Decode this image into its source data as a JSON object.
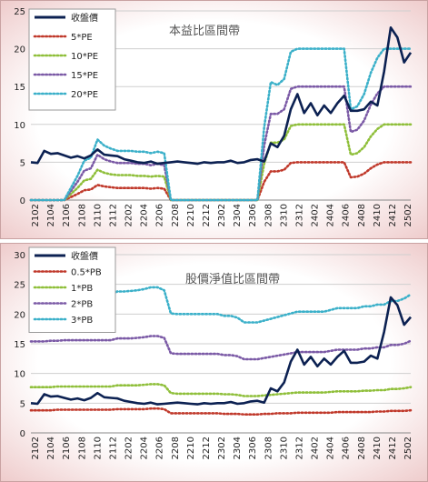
{
  "chart_data": [
    {
      "type": "line",
      "title": "本益比區間帶",
      "ylim": [
        0,
        25
      ],
      "yticks": [
        0,
        5,
        10,
        15,
        20,
        25
      ],
      "x_labels": [
        "2102",
        "2104",
        "2106",
        "2108",
        "2110",
        "2112",
        "2202",
        "2204",
        "2206",
        "2208",
        "2210",
        "2212",
        "2302",
        "2304",
        "2306",
        "2308",
        "2310",
        "2312",
        "2402",
        "2404",
        "2406",
        "2408",
        "2410",
        "2412",
        "2502"
      ],
      "series": [
        {
          "name": "收盤價",
          "color": "#0c2152",
          "style": "solid",
          "values": [
            5.0,
            4.9,
            6.5,
            6.1,
            6.2,
            5.9,
            5.6,
            5.8,
            5.5,
            5.9,
            6.7,
            6.0,
            5.9,
            5.8,
            5.4,
            5.2,
            5.0,
            4.9,
            5.1,
            4.8,
            4.9,
            5.0,
            5.1,
            5.0,
            4.9,
            4.8,
            5.0,
            4.9,
            5.0,
            5.0,
            5.2,
            4.9,
            5.0,
            5.3,
            5.4,
            5.1,
            7.5,
            7.0,
            8.5,
            12.0,
            14.0,
            11.5,
            12.8,
            11.2,
            12.5,
            11.5,
            12.8,
            13.8,
            11.8,
            11.8,
            12.0,
            13.0,
            12.5,
            17.0,
            22.8,
            21.5,
            18.2,
            19.5
          ]
        },
        {
          "name": "5*PE",
          "color": "#c0392b",
          "style": "dotted",
          "values": [
            0,
            0,
            0,
            0,
            0,
            0,
            0.4,
            0.8,
            1.3,
            1.4,
            2.0,
            1.8,
            1.7,
            1.6,
            1.6,
            1.6,
            1.6,
            1.6,
            1.5,
            1.6,
            1.5,
            0,
            0,
            0,
            0,
            0,
            0,
            0,
            0,
            0,
            0,
            0,
            0,
            0,
            0,
            2.4,
            3.8,
            3.8,
            4.0,
            4.9,
            5.0,
            5.0,
            5.0,
            5.0,
            5.0,
            5.0,
            5.0,
            5.0,
            3.0,
            3.1,
            3.5,
            4.2,
            4.7,
            5.0,
            5.0,
            5.0,
            5.0,
            5.0
          ]
        },
        {
          "name": "10*PE",
          "color": "#8fbf3a",
          "style": "dotted",
          "values": [
            0,
            0,
            0,
            0,
            0,
            0,
            0.8,
            1.6,
            2.6,
            2.8,
            4.0,
            3.6,
            3.4,
            3.3,
            3.3,
            3.3,
            3.2,
            3.2,
            3.1,
            3.2,
            3.1,
            0,
            0,
            0,
            0,
            0,
            0,
            0,
            0,
            0,
            0,
            0,
            0,
            0,
            0,
            4.8,
            7.6,
            7.6,
            8.0,
            9.8,
            10.0,
            10.0,
            10.0,
            10.0,
            10.0,
            10.0,
            10.0,
            10.0,
            6.0,
            6.2,
            7.0,
            8.4,
            9.4,
            10.0,
            10.0,
            10.0,
            10.0,
            10.0
          ]
        },
        {
          "name": "15*PE",
          "color": "#7b5aa6",
          "style": "dotted",
          "values": [
            0,
            0,
            0,
            0,
            0,
            0,
            1.2,
            2.4,
            3.9,
            4.2,
            6.0,
            5.4,
            5.1,
            4.9,
            4.9,
            4.9,
            4.8,
            4.8,
            4.6,
            4.8,
            4.6,
            0,
            0,
            0,
            0,
            0,
            0,
            0,
            0,
            0,
            0,
            0,
            0,
            0,
            0,
            7.2,
            11.4,
            11.4,
            12.0,
            14.7,
            15.0,
            15.0,
            15.0,
            15.0,
            15.0,
            15.0,
            15.0,
            15.0,
            9.0,
            9.3,
            10.5,
            12.6,
            14.1,
            15.0,
            15.0,
            15.0,
            15.0,
            15.0
          ]
        },
        {
          "name": "20*PE",
          "color": "#3bb0c9",
          "style": "dotted",
          "values": [
            0,
            0,
            0,
            0,
            0,
            0,
            1.6,
            3.2,
            5.2,
            5.6,
            8.0,
            7.2,
            6.8,
            6.5,
            6.5,
            6.5,
            6.4,
            6.4,
            6.2,
            6.4,
            6.2,
            0,
            0,
            0,
            0,
            0,
            0,
            0,
            0,
            0,
            0,
            0,
            0,
            0,
            0,
            9.6,
            15.6,
            15.2,
            16.0,
            19.6,
            20.0,
            20.0,
            20.0,
            20.0,
            20.0,
            20.0,
            20.0,
            20.0,
            12.0,
            12.4,
            14.0,
            16.8,
            18.8,
            20.0,
            20.0,
            20.0,
            20.0,
            20.0
          ]
        }
      ]
    },
    {
      "type": "line",
      "title": "股價淨值比區間帶",
      "ylim": [
        0,
        30
      ],
      "yticks": [
        0,
        5,
        10,
        15,
        20,
        25,
        30
      ],
      "x_labels": [
        "2102",
        "2104",
        "2106",
        "2108",
        "2110",
        "2112",
        "2202",
        "2204",
        "2206",
        "2208",
        "2210",
        "2212",
        "2302",
        "2304",
        "2306",
        "2308",
        "2310",
        "2312",
        "2402",
        "2404",
        "2406",
        "2408",
        "2410",
        "2412",
        "2502"
      ],
      "series": [
        {
          "name": "收盤價",
          "color": "#0c2152",
          "style": "solid",
          "values": [
            5.0,
            4.9,
            6.5,
            6.1,
            6.2,
            5.9,
            5.6,
            5.8,
            5.5,
            5.9,
            6.7,
            6.0,
            5.9,
            5.8,
            5.4,
            5.2,
            5.0,
            4.9,
            5.1,
            4.8,
            4.9,
            5.0,
            5.1,
            5.0,
            4.9,
            4.8,
            5.0,
            4.9,
            5.0,
            5.0,
            5.2,
            4.9,
            5.0,
            5.3,
            5.4,
            5.1,
            7.5,
            7.0,
            8.5,
            12.0,
            14.0,
            11.5,
            12.8,
            11.2,
            12.5,
            11.5,
            12.8,
            13.8,
            11.8,
            11.8,
            12.0,
            13.0,
            12.5,
            17.0,
            22.8,
            21.5,
            18.2,
            19.5
          ]
        },
        {
          "name": "0.5*PB",
          "color": "#c0392b",
          "style": "dotted",
          "values": [
            3.8,
            3.8,
            3.8,
            3.8,
            3.9,
            3.9,
            3.9,
            3.9,
            3.9,
            3.9,
            3.9,
            3.9,
            3.9,
            4.0,
            4.0,
            4.0,
            4.0,
            4.0,
            4.1,
            4.1,
            4.0,
            3.3,
            3.3,
            3.3,
            3.3,
            3.3,
            3.3,
            3.3,
            3.3,
            3.2,
            3.2,
            3.2,
            3.1,
            3.1,
            3.1,
            3.2,
            3.2,
            3.3,
            3.3,
            3.3,
            3.4,
            3.4,
            3.4,
            3.4,
            3.4,
            3.4,
            3.5,
            3.5,
            3.5,
            3.5,
            3.5,
            3.5,
            3.6,
            3.6,
            3.7,
            3.7,
            3.7,
            3.8
          ]
        },
        {
          "name": "1*PB",
          "color": "#8fbf3a",
          "style": "dotted",
          "values": [
            7.7,
            7.7,
            7.7,
            7.7,
            7.8,
            7.8,
            7.8,
            7.8,
            7.8,
            7.8,
            7.8,
            7.8,
            7.8,
            8.0,
            8.0,
            8.0,
            8.0,
            8.1,
            8.2,
            8.2,
            8.0,
            6.7,
            6.6,
            6.6,
            6.6,
            6.6,
            6.6,
            6.6,
            6.6,
            6.5,
            6.5,
            6.4,
            6.2,
            6.2,
            6.2,
            6.3,
            6.4,
            6.5,
            6.6,
            6.7,
            6.8,
            6.8,
            6.8,
            6.8,
            6.8,
            6.9,
            7.0,
            7.0,
            7.0,
            7.0,
            7.1,
            7.1,
            7.2,
            7.2,
            7.4,
            7.4,
            7.5,
            7.7
          ]
        },
        {
          "name": "2*PB",
          "color": "#7b5aa6",
          "style": "dotted",
          "values": [
            15.4,
            15.4,
            15.4,
            15.5,
            15.5,
            15.6,
            15.6,
            15.6,
            15.6,
            15.6,
            15.6,
            15.6,
            15.6,
            15.9,
            15.9,
            15.9,
            16.0,
            16.1,
            16.3,
            16.3,
            16.0,
            13.4,
            13.3,
            13.3,
            13.3,
            13.3,
            13.3,
            13.3,
            13.3,
            13.1,
            13.1,
            12.9,
            12.4,
            12.4,
            12.4,
            12.6,
            12.8,
            13.0,
            13.2,
            13.4,
            13.6,
            13.6,
            13.6,
            13.6,
            13.6,
            13.8,
            14.0,
            14.0,
            14.0,
            14.0,
            14.2,
            14.2,
            14.4,
            14.4,
            14.8,
            14.8,
            15.0,
            15.5
          ]
        },
        {
          "name": "3*PB",
          "color": "#3bb0c9",
          "style": "dotted",
          "values": [
            23.1,
            23.2,
            23.2,
            23.2,
            23.3,
            23.4,
            23.4,
            23.4,
            23.4,
            23.4,
            23.4,
            23.4,
            23.4,
            23.8,
            23.8,
            23.9,
            24.0,
            24.2,
            24.5,
            24.5,
            24.0,
            20.1,
            20.0,
            20.0,
            20.0,
            20.0,
            20.0,
            20.0,
            20.0,
            19.7,
            19.7,
            19.4,
            18.6,
            18.6,
            18.6,
            18.9,
            19.2,
            19.5,
            19.8,
            20.1,
            20.4,
            20.4,
            20.4,
            20.4,
            20.4,
            20.7,
            21.0,
            21.0,
            21.0,
            21.0,
            21.3,
            21.3,
            21.6,
            21.6,
            22.2,
            22.2,
            22.6,
            23.3
          ]
        }
      ]
    }
  ]
}
